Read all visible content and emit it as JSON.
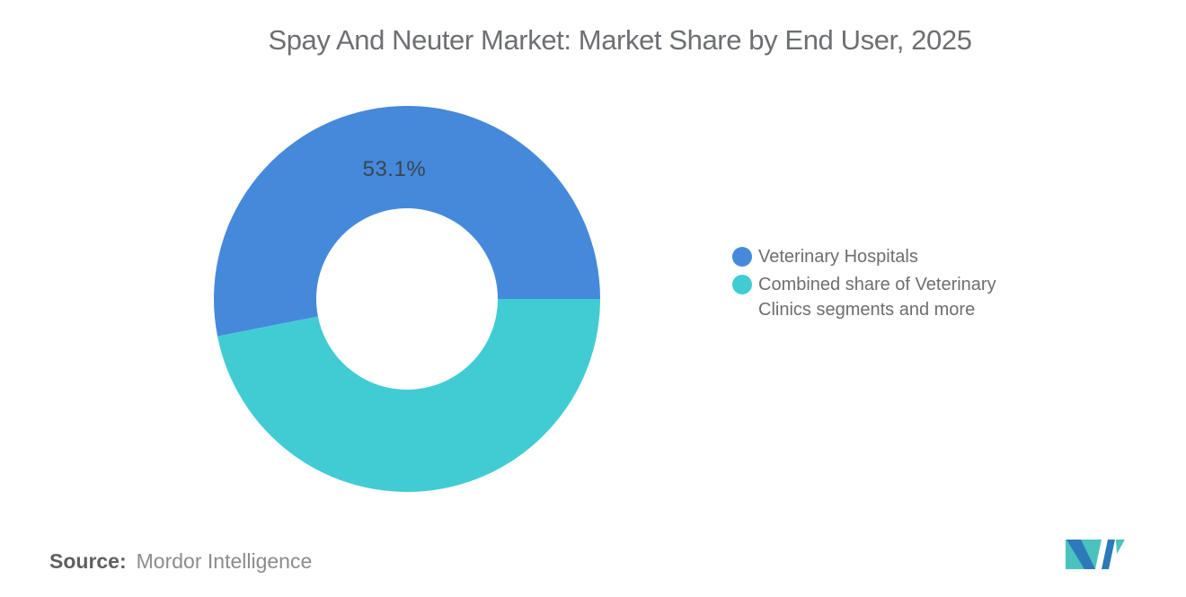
{
  "page": {
    "background": "#ffffff"
  },
  "chart_data": {
    "type": "pie",
    "donut": true,
    "title": "Spay And Neuter Market: Market Share by End User, 2025",
    "series": [
      {
        "name": "Veterinary Hospitals",
        "value": 53.1,
        "color": "#4589db",
        "data_label": "53.1%"
      },
      {
        "name": "Combined share of Veterinary Clinics segments and more",
        "value": 46.9,
        "color": "#41ccd3",
        "data_label": ""
      }
    ],
    "legend_position": "right",
    "rotation_deg": -101.16,
    "inner_radius_ratio": 0.47,
    "data_label_color": "#37474e",
    "data_label_radius": 145
  },
  "footer": {
    "source_label": "Source:",
    "source_value": "Mordor Intelligence",
    "logo": {
      "icon": "mordor-intelligence-logo",
      "teal": "#4ac2be",
      "blue": "#2e78bc"
    }
  }
}
